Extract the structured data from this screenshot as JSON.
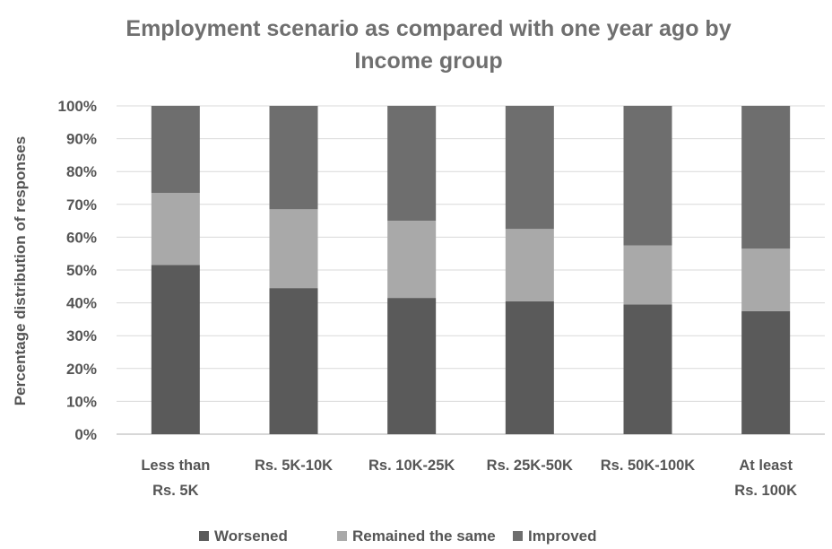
{
  "chart_data": {
    "type": "bar",
    "stacked": true,
    "title_line1": "Employment scenario as compared with one year ago by",
    "title_line2": "Income group",
    "ylabel": "Percentage distribution of responses",
    "xlabel": "",
    "ylim": [
      0,
      100
    ],
    "yticks": [
      "0%",
      "10%",
      "20%",
      "30%",
      "40%",
      "50%",
      "60%",
      "70%",
      "80%",
      "90%",
      "100%"
    ],
    "grid": true,
    "legend_position": "bottom",
    "categories": [
      [
        "Less than",
        "Rs. 5K"
      ],
      [
        "Rs. 5K-10K"
      ],
      [
        "Rs. 10K-25K"
      ],
      [
        "Rs. 25K-50K"
      ],
      [
        "Rs. 50K-100K"
      ],
      [
        "At least",
        "Rs. 100K"
      ]
    ],
    "series": [
      {
        "name": "Worsened",
        "color": "#5a5a5a",
        "values": [
          51.5,
          44.5,
          41.5,
          40.5,
          39.5,
          37.5
        ]
      },
      {
        "name": "Remained the same",
        "color": "#a9a9a9",
        "values": [
          22,
          24,
          23.5,
          22,
          18,
          19
        ]
      },
      {
        "name": "Improved",
        "color": "#6e6e6e",
        "values": [
          26.5,
          31.5,
          35,
          37.5,
          42.5,
          43.5
        ]
      }
    ]
  }
}
